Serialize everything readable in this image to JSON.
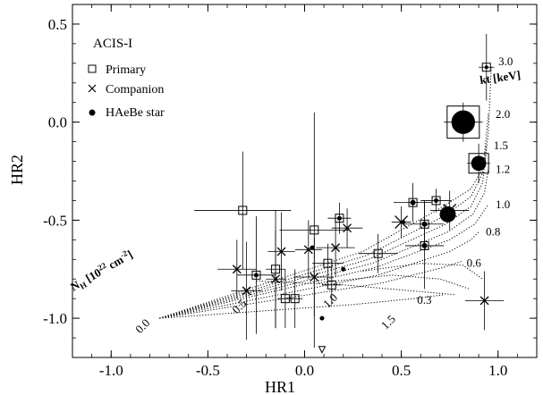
{
  "chart_data": {
    "type": "scatter",
    "panel_label": "ACIS-I",
    "xlabel": "HR1",
    "ylabel": "HR2",
    "xlim": [
      -1.2,
      1.2
    ],
    "ylim": [
      -1.2,
      0.6
    ],
    "xticks": [
      -1.0,
      -0.5,
      0.0,
      0.5,
      1.0
    ],
    "xtick_labels": [
      "-1.0",
      "-0.5",
      "0.0",
      "0.5",
      "1.0"
    ],
    "yticks": [
      -1.0,
      -0.5,
      0.0,
      0.5
    ],
    "ytick_labels": [
      "-1.0",
      "-0.5",
      "0.0",
      "0.5"
    ],
    "legend": {
      "placement": "top-left",
      "entries": [
        {
          "marker": "square",
          "label": "Primary"
        },
        {
          "marker": "cross",
          "label": "Companion"
        },
        {
          "marker": "dot",
          "label": "HAeBe star"
        }
      ]
    },
    "grid_model": {
      "kt_title": "kt [keV]",
      "nh_title_main": "N",
      "nh_title_sub": "H",
      "nh_title_rest": " [10",
      "nh_title_sup": "22",
      "nh_title_unit": " cm",
      "nh_title_sup2": "-2",
      "nh_title_close": "]",
      "kt_values": [
        0.3,
        0.6,
        0.8,
        1.0,
        1.2,
        1.5,
        2.0,
        3.0
      ],
      "kt_labels": [
        "0.3",
        "0.6",
        "0.8",
        "1.0",
        "1.2",
        "1.5",
        "2.0",
        "3.0"
      ],
      "nh_values": [
        0.0,
        0.5,
        1.0,
        1.5
      ],
      "nh_labels": [
        "0.0",
        "0.5",
        "1.0",
        "1.5"
      ],
      "kt_curves": [
        {
          "kt": 3.0,
          "points": [
            [
              -0.75,
              -1.0
            ],
            [
              0.3,
              -0.66
            ],
            [
              0.7,
              -0.44
            ],
            [
              0.86,
              -0.34
            ],
            [
              0.93,
              -0.22
            ],
            [
              0.95,
              -0.05
            ],
            [
              0.965,
              0.28
            ]
          ]
        },
        {
          "kt": 2.0,
          "points": [
            [
              -0.75,
              -1.0
            ],
            [
              0.32,
              -0.68
            ],
            [
              0.72,
              -0.48
            ],
            [
              0.86,
              -0.38
            ],
            [
              0.92,
              -0.26
            ],
            [
              0.94,
              -0.06
            ],
            [
              0.95,
              0.04
            ]
          ]
        },
        {
          "kt": 1.5,
          "points": [
            [
              -0.75,
              -1.0
            ],
            [
              0.33,
              -0.7
            ],
            [
              0.73,
              -0.52
            ],
            [
              0.86,
              -0.43
            ],
            [
              0.92,
              -0.31
            ],
            [
              0.94,
              -0.12
            ]
          ]
        },
        {
          "kt": 1.2,
          "points": [
            [
              -0.75,
              -1.0
            ],
            [
              0.35,
              -0.72
            ],
            [
              0.74,
              -0.56
            ],
            [
              0.87,
              -0.47
            ],
            [
              0.93,
              -0.36
            ],
            [
              0.95,
              -0.24
            ]
          ]
        },
        {
          "kt": 1.0,
          "points": [
            [
              -0.75,
              -1.0
            ],
            [
              0.37,
              -0.74
            ],
            [
              0.75,
              -0.6
            ],
            [
              0.88,
              -0.52
            ],
            [
              0.95,
              -0.42
            ]
          ]
        },
        {
          "kt": 0.8,
          "points": [
            [
              -0.75,
              -1.0
            ],
            [
              0.38,
              -0.78
            ],
            [
              0.75,
              -0.66
            ],
            [
              0.86,
              -0.6
            ],
            [
              0.9,
              -0.56
            ]
          ]
        },
        {
          "kt": 0.6,
          "points": [
            [
              -0.75,
              -1.0
            ],
            [
              0.4,
              -0.82
            ],
            [
              0.72,
              -0.74
            ],
            [
              0.81,
              -0.71
            ]
          ]
        },
        {
          "kt": 0.3,
          "points": [
            [
              -0.75,
              -1.0
            ],
            [
              0.25,
              -0.93
            ],
            [
              0.56,
              -0.9
            ],
            [
              0.72,
              -0.88
            ]
          ]
        }
      ],
      "nh_curves": [
        {
          "nh": 0.5,
          "points": [
            [
              -0.25,
              -0.81
            ],
            [
              0.2,
              -0.83
            ],
            [
              0.55,
              -0.86
            ],
            [
              0.78,
              -0.88
            ]
          ]
        },
        {
          "nh": 1.0,
          "points": [
            [
              0.07,
              -0.82
            ],
            [
              0.45,
              -0.78
            ],
            [
              0.7,
              -0.8
            ],
            [
              0.85,
              -0.85
            ]
          ]
        },
        {
          "nh": 1.5,
          "points": [
            [
              0.3,
              -0.76
            ],
            [
              0.6,
              -0.72
            ],
            [
              0.82,
              -0.73
            ],
            [
              0.92,
              -0.8
            ]
          ]
        }
      ]
    },
    "series": [
      {
        "name": "Primary",
        "marker": "square",
        "points": [
          {
            "x": -0.32,
            "y": -0.45,
            "xerr": 0.25,
            "yerr": 0.3
          },
          {
            "x": -0.25,
            "y": -0.78,
            "xerr": 0.1,
            "yerr": 0.3
          },
          {
            "x": -0.15,
            "y": -0.75,
            "xerr": 0.05,
            "yerr": 0.3
          },
          {
            "x": -0.1,
            "y": -0.9,
            "xerr": 0.04,
            "yerr": 0.15
          },
          {
            "x": -0.05,
            "y": -0.9,
            "xerr": 0.04,
            "yerr": 0.15
          },
          {
            "x": 0.05,
            "y": -0.55,
            "xerr": 0.18,
            "yerr": 0.6
          },
          {
            "x": 0.12,
            "y": -0.72,
            "xerr": 0.08,
            "yerr": 0.1
          },
          {
            "x": 0.14,
            "y": -0.83,
            "xerr": 0.05,
            "yerr": 0.1
          },
          {
            "x": 0.18,
            "y": -0.49,
            "xerr": 0.06,
            "yerr": 0.08
          },
          {
            "x": 0.38,
            "y": -0.67,
            "xerr": 0.1,
            "yerr": 0.1
          },
          {
            "x": 0.56,
            "y": -0.41,
            "xerr": 0.1,
            "yerr": 0.1
          },
          {
            "x": 0.62,
            "y": -0.52,
            "xerr": 0.1,
            "yerr": 0.12
          },
          {
            "x": 0.62,
            "y": -0.63,
            "xerr": 0.1,
            "yerr": 0.22
          },
          {
            "x": 0.68,
            "y": -0.4,
            "xerr": 0.08,
            "yerr": 0.06
          },
          {
            "x": 0.82,
            "y": 0.0,
            "xerr": 0.1,
            "yerr": 0.1,
            "size": 36
          },
          {
            "x": 0.9,
            "y": -0.21,
            "xerr": 0.06,
            "yerr": 0.1,
            "size": 22
          },
          {
            "x": 0.94,
            "y": 0.28,
            "xerr": 0.04,
            "yerr": 0.17
          }
        ]
      },
      {
        "name": "Companion",
        "marker": "cross",
        "points": [
          {
            "x": -0.35,
            "y": -0.75,
            "xerr": 0.1,
            "yerr": 0.15
          },
          {
            "x": -0.3,
            "y": -0.86,
            "xerr": 0.08,
            "yerr": 0.25
          },
          {
            "x": -0.12,
            "y": -0.66,
            "xerr": 0.07,
            "yerr": 0.2
          },
          {
            "x": -0.15,
            "y": -0.8,
            "xerr": 0.05,
            "yerr": 0.25
          },
          {
            "x": 0.02,
            "y": -0.65,
            "xerr": 0.07,
            "yerr": 0.15
          },
          {
            "x": 0.05,
            "y": -0.79,
            "xerr": 0.1,
            "yerr": 0.2
          },
          {
            "x": 0.16,
            "y": -0.64,
            "xerr": 0.1,
            "yerr": 0.15
          },
          {
            "x": 0.22,
            "y": -0.54,
            "xerr": 0.08,
            "yerr": 0.1
          },
          {
            "x": 0.5,
            "y": -0.51,
            "xerr": 0.05,
            "yerr": 0.08,
            "size": 14
          },
          {
            "x": 0.75,
            "y": -0.45,
            "xerr": 0.1,
            "yerr": 0.1,
            "size": 14
          },
          {
            "x": 0.93,
            "y": -0.91,
            "xerr": 0.1,
            "yerr": 0.15
          }
        ]
      },
      {
        "name": "HAeBe star",
        "marker": "dot",
        "points": [
          {
            "x": -0.25,
            "y": -0.78,
            "size": 5
          },
          {
            "x": 0.04,
            "y": -0.64,
            "size": 5
          },
          {
            "x": 0.09,
            "y": -1.0,
            "size": 5
          },
          {
            "x": 0.18,
            "y": -0.49,
            "size": 5
          },
          {
            "x": 0.2,
            "y": -0.75,
            "size": 5
          },
          {
            "x": 0.56,
            "y": -0.41,
            "size": 6
          },
          {
            "x": 0.62,
            "y": -0.52,
            "size": 6
          },
          {
            "x": 0.62,
            "y": -0.63,
            "size": 6
          },
          {
            "x": 0.51,
            "y": -0.51,
            "size": 5
          },
          {
            "x": 0.68,
            "y": -0.4,
            "size": 5
          },
          {
            "x": 0.74,
            "y": -0.47,
            "size": 15
          },
          {
            "x": 0.82,
            "y": 0.0,
            "size": 22
          },
          {
            "x": 0.9,
            "y": -0.21,
            "size": 14
          },
          {
            "x": 0.94,
            "y": 0.28,
            "size": 4
          }
        ]
      },
      {
        "name": "Upper limit",
        "marker": "triangle-down",
        "points": [
          {
            "x": 0.09,
            "y": -1.16,
            "size": 7
          }
        ]
      }
    ]
  }
}
